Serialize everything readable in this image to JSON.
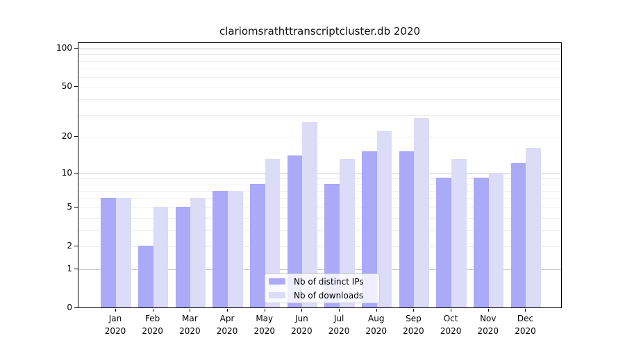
{
  "title": "clariomsrathttranscriptcluster.db 2020",
  "colors": {
    "distinct_ips": "#aaaaf8",
    "downloads": "#dcdcf8",
    "grid_major": "#c9c9c9",
    "grid_minor": "#ececec",
    "spine": "#000000",
    "legend_border": "#cccccc",
    "text": "#000000"
  },
  "y_axis": {
    "scale": "log1p",
    "labeled_ticks": [
      100,
      50,
      20,
      10,
      5,
      2,
      1,
      0
    ],
    "major_gridlines": [
      1,
      10,
      100
    ],
    "minor_gridlines": [
      2,
      3,
      4,
      5,
      6,
      7,
      8,
      9,
      20,
      30,
      40,
      50,
      60,
      70,
      80,
      90
    ]
  },
  "x_axis": {
    "months": [
      "Jan",
      "Feb",
      "Mar",
      "Apr",
      "May",
      "Jun",
      "Jul",
      "Aug",
      "Sep",
      "Oct",
      "Nov",
      "Dec"
    ],
    "year": "2020"
  },
  "legend": {
    "items": [
      {
        "label": "Nb of distinct IPs",
        "color_key": "distinct_ips"
      },
      {
        "label": "Nb of downloads",
        "color_key": "downloads"
      }
    ]
  },
  "chart_data": {
    "type": "bar",
    "title": "clariomsrathttranscriptcluster.db 2020",
    "categories": [
      "Jan 2020",
      "Feb 2020",
      "Mar 2020",
      "Apr 2020",
      "May 2020",
      "Jun 2020",
      "Jul 2020",
      "Aug 2020",
      "Sep 2020",
      "Oct 2020",
      "Nov 2020",
      "Dec 2020"
    ],
    "series": [
      {
        "name": "Nb of distinct IPs",
        "color_key": "distinct_ips",
        "values": [
          6,
          2,
          5,
          7,
          8,
          14,
          8,
          15,
          15,
          9,
          9,
          12
        ]
      },
      {
        "name": "Nb of downloads",
        "color_key": "downloads",
        "values": [
          6,
          5,
          6,
          7,
          13,
          26,
          13,
          22,
          28,
          13,
          10,
          16
        ]
      }
    ],
    "xlabel": "",
    "ylabel": "",
    "yscale": "log1p",
    "ylim": [
      0,
      100
    ],
    "grid": true,
    "legend_position": "lower center"
  }
}
